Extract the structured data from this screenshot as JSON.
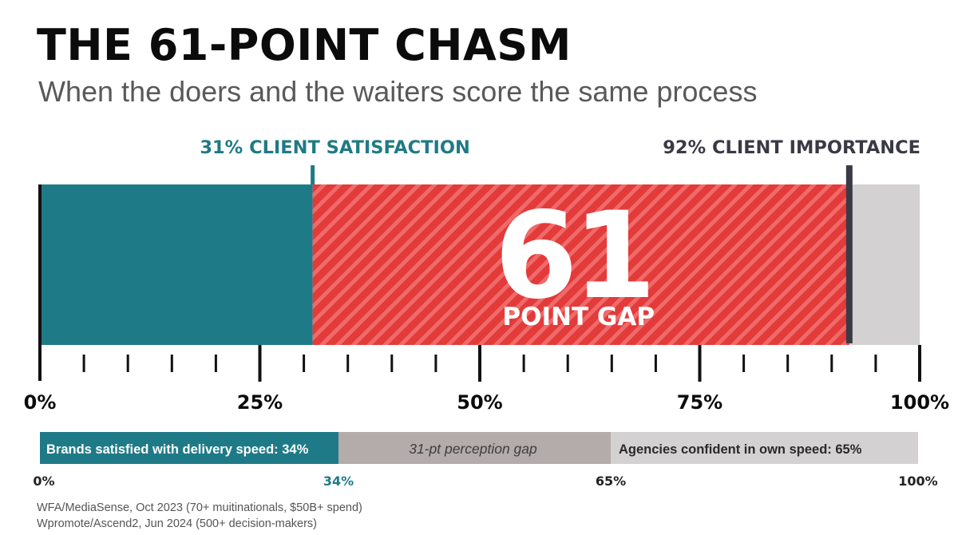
{
  "title": "THE 61-POINT CHASM",
  "subtitle": "When the doers and the waiters score the same process",
  "colors": {
    "teal": "#1f7a87",
    "red": "#e33a3a",
    "stripe": "#f06a6a",
    "gray": "#d3d1d1",
    "dark": "#3a3a46",
    "gap_gray": "#b4acab"
  },
  "chart_data": [
    {
      "type": "bar",
      "title": "THE 61-POINT CHASM",
      "subtitle": "When the doers and the waiters score the same process",
      "xlim": [
        0,
        100
      ],
      "unit": "%",
      "segments": [
        {
          "name": "client satisfaction",
          "start": 0,
          "end": 31,
          "color": "#1f7a87"
        },
        {
          "name": "gap",
          "start": 31,
          "end": 92,
          "color": "#e33a3a"
        },
        {
          "name": "remainder",
          "start": 92,
          "end": 100,
          "color": "#d3d1d1"
        }
      ],
      "markers": [
        {
          "value": 31,
          "label": "31% CLIENT SATISFACTION",
          "color": "#1f7a87"
        },
        {
          "value": 92,
          "label": "92% CLIENT IMPORTANCE",
          "color": "#3a3a46"
        }
      ],
      "gap_value": "61",
      "gap_label": "POINT GAP",
      "tick_labels": [
        "0%",
        "25%",
        "50%",
        "75%",
        "100%"
      ],
      "tick_values": [
        0,
        25,
        50,
        75,
        100
      ],
      "minor_tick_step": 5
    },
    {
      "type": "bar",
      "xlim": [
        0,
        100
      ],
      "segments": [
        {
          "start": 0,
          "end": 34,
          "label": "Brands satisfied with delivery speed: 34%",
          "color": "#1f7a87"
        },
        {
          "start": 34,
          "end": 65,
          "label": "31-pt perception gap",
          "color": "#b4acab"
        },
        {
          "start": 65,
          "end": 100,
          "label": "Agencies confident in own speed: 65%",
          "color": "#d3d1d1"
        }
      ],
      "tick_labels": [
        "0%",
        "34%",
        "65%",
        "100%"
      ],
      "tick_values": [
        0,
        34,
        65,
        100
      ]
    }
  ],
  "sources": [
    "WFA/MediaSense, Oct 2023 (70+ muitinationals, $50B+ spend)",
    "Wpromote/Ascend2, Jun 2024 (500+ decision-makers)"
  ]
}
